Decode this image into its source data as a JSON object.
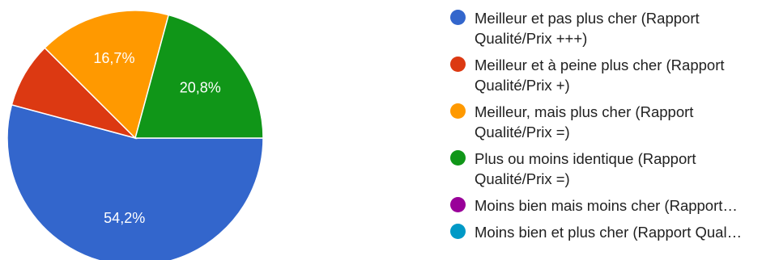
{
  "chart_data": {
    "type": "pie",
    "categories": [
      "Meilleur et pas plus cher (Rapport\nQualité/Prix +++)",
      "Meilleur et à peine plus cher (Rapport\nQualité/Prix +)",
      "Meilleur, mais plus cher (Rapport\nQualité/Prix =)",
      "Plus ou moins identique (Rapport\nQualité/Prix =)",
      "Moins bien mais moins cher (Rapport…",
      "Moins bien et plus cher (Rapport Qual…"
    ],
    "values": [
      54.2,
      8.3,
      16.7,
      20.8,
      0,
      0
    ],
    "slice_labels": [
      "54,2%",
      "",
      "16,7%",
      "20,8%",
      "",
      ""
    ],
    "colors": [
      "#3366cc",
      "#dc3912",
      "#ff9900",
      "#109618",
      "#990099",
      "#0099c6"
    ],
    "legend_position": "right",
    "start_angle_deg": 90,
    "direction": "counterclockwise"
  }
}
